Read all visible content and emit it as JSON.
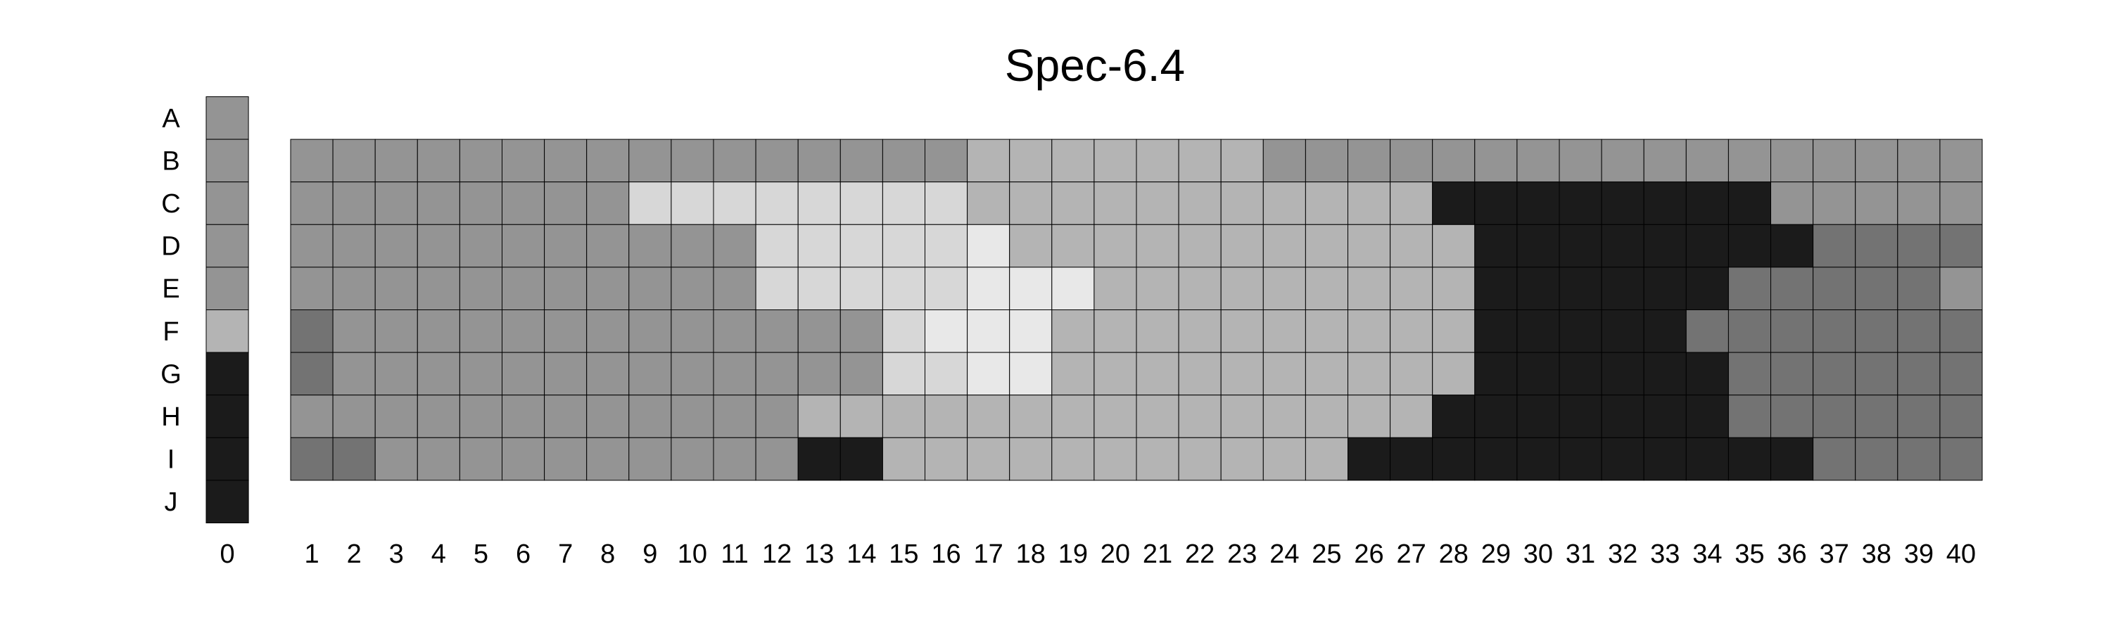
{
  "chart_data": {
    "type": "heatmap",
    "title": "Spec-6.4",
    "row_labels": [
      "A",
      "B",
      "C",
      "D",
      "E",
      "F",
      "G",
      "H",
      "I",
      "J"
    ],
    "col0_label": "0",
    "col_labels": [
      "1",
      "2",
      "3",
      "4",
      "5",
      "6",
      "7",
      "8",
      "9",
      "10",
      "11",
      "12",
      "13",
      "14",
      "15",
      "16",
      "17",
      "18",
      "19",
      "20",
      "21",
      "22",
      "23",
      "24",
      "25",
      "26",
      "27",
      "28",
      "29",
      "30",
      "31",
      "32",
      "33",
      "34",
      "35",
      "36",
      "37",
      "38",
      "39",
      "40"
    ],
    "column0_rows": [
      "A",
      "B",
      "C",
      "D",
      "E",
      "F",
      "G",
      "H",
      "I",
      "J"
    ],
    "column0_values": [
      148,
      148,
      148,
      148,
      148,
      180,
      27,
      27,
      27,
      27
    ],
    "grid_rows": [
      "B",
      "C",
      "D",
      "E",
      "F",
      "G",
      "H",
      "I"
    ],
    "grid_values": [
      [
        148,
        148,
        148,
        148,
        148,
        148,
        148,
        148,
        148,
        148,
        148,
        148,
        148,
        148,
        148,
        148,
        180,
        180,
        180,
        180,
        180,
        180,
        180,
        148,
        148,
        148,
        148,
        148,
        148,
        148,
        148,
        148,
        148,
        148,
        148,
        148,
        148,
        148,
        148,
        148
      ],
      [
        148,
        148,
        148,
        148,
        148,
        148,
        148,
        148,
        215,
        215,
        215,
        215,
        215,
        215,
        215,
        215,
        180,
        180,
        180,
        180,
        180,
        180,
        180,
        180,
        180,
        180,
        180,
        27,
        27,
        27,
        27,
        27,
        27,
        27,
        27,
        148,
        148,
        148,
        148,
        148
      ],
      [
        148,
        148,
        148,
        148,
        148,
        148,
        148,
        148,
        148,
        148,
        148,
        215,
        215,
        215,
        215,
        215,
        232,
        180,
        180,
        180,
        180,
        180,
        180,
        180,
        180,
        180,
        180,
        180,
        27,
        27,
        27,
        27,
        27,
        27,
        27,
        27,
        115,
        115,
        115,
        115
      ],
      [
        148,
        148,
        148,
        148,
        148,
        148,
        148,
        148,
        148,
        148,
        148,
        215,
        215,
        215,
        215,
        215,
        232,
        232,
        232,
        180,
        180,
        180,
        180,
        180,
        180,
        180,
        180,
        180,
        27,
        27,
        27,
        27,
        27,
        27,
        115,
        115,
        115,
        115,
        115,
        148
      ],
      [
        115,
        148,
        148,
        148,
        148,
        148,
        148,
        148,
        148,
        148,
        148,
        148,
        148,
        148,
        215,
        232,
        232,
        232,
        180,
        180,
        180,
        180,
        180,
        180,
        180,
        180,
        180,
        180,
        27,
        27,
        27,
        27,
        27,
        115,
        115,
        115,
        115,
        115,
        115,
        115
      ],
      [
        115,
        148,
        148,
        148,
        148,
        148,
        148,
        148,
        148,
        148,
        148,
        148,
        148,
        148,
        215,
        215,
        232,
        232,
        180,
        180,
        180,
        180,
        180,
        180,
        180,
        180,
        180,
        180,
        27,
        27,
        27,
        27,
        27,
        27,
        115,
        115,
        115,
        115,
        115,
        115
      ],
      [
        148,
        148,
        148,
        148,
        148,
        148,
        148,
        148,
        148,
        148,
        148,
        148,
        180,
        180,
        180,
        180,
        180,
        180,
        180,
        180,
        180,
        180,
        180,
        180,
        180,
        180,
        180,
        27,
        27,
        27,
        27,
        27,
        27,
        27,
        115,
        115,
        115,
        115,
        115,
        115
      ],
      [
        115,
        115,
        148,
        148,
        148,
        148,
        148,
        148,
        148,
        148,
        148,
        148,
        27,
        27,
        180,
        180,
        180,
        180,
        180,
        180,
        180,
        180,
        180,
        180,
        180,
        27,
        27,
        27,
        27,
        27,
        27,
        27,
        27,
        27,
        27,
        27,
        115,
        115,
        115,
        115
      ]
    ],
    "colormap": "grayscale",
    "grid": true,
    "legend": "none"
  }
}
